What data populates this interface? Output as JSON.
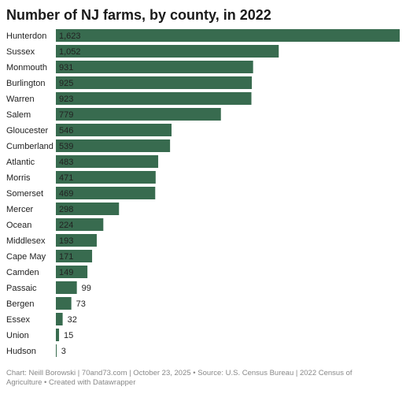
{
  "chart_data": {
    "type": "hbar",
    "title": "Number of NJ farms, by county, in 2022",
    "categories": [
      "Hunterdon",
      "Sussex",
      "Monmouth",
      "Burlington",
      "Warren",
      "Salem",
      "Gloucester",
      "Cumberland",
      "Atlantic",
      "Morris",
      "Somerset",
      "Mercer",
      "Ocean",
      "Middlesex",
      "Cape May",
      "Camden",
      "Passaic",
      "Bergen",
      "Essex",
      "Union",
      "Hudson"
    ],
    "values": [
      1623,
      1052,
      931,
      925,
      923,
      779,
      546,
      539,
      483,
      471,
      469,
      298,
      224,
      193,
      171,
      149,
      99,
      73,
      32,
      15,
      3
    ],
    "value_labels": [
      "1,623",
      "1,052",
      "931",
      "925",
      "923",
      "779",
      "546",
      "539",
      "483",
      "471",
      "469",
      "298",
      "224",
      "193",
      "171",
      "149",
      "99",
      "73",
      "32",
      "15",
      "3"
    ],
    "color": "#386b4f",
    "xlim": [
      0,
      1623
    ],
    "source": "Chart: Neill Borowski | 70and73.com | October 23, 2025 • Source: U.S. Census Bureau | 2022 Census of Agriculture • Created with Datawrapper"
  }
}
